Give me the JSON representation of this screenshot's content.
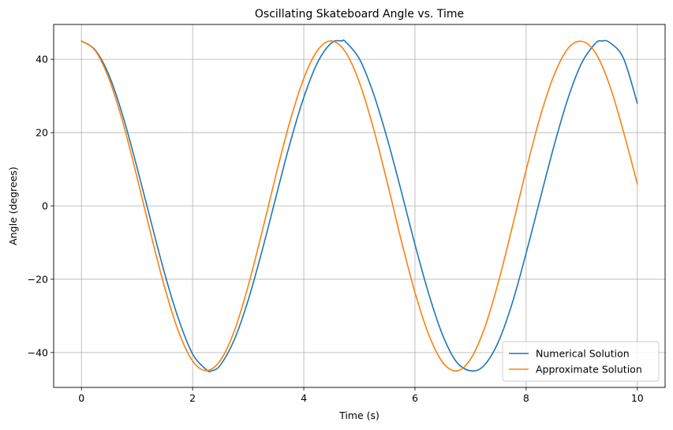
{
  "chart_data": {
    "type": "line",
    "title": "Oscillating Skateboard Angle vs. Time",
    "xlabel": "Time (s)",
    "ylabel": "Angle (degrees)",
    "xlim": [
      -0.5,
      10.5
    ],
    "ylim": [
      -49.5,
      49.5
    ],
    "xticks": [
      0,
      2,
      4,
      6,
      8,
      10
    ],
    "xtick_labels": [
      "0",
      "2",
      "4",
      "6",
      "8",
      "10"
    ],
    "yticks": [
      -40,
      -20,
      0,
      20,
      40
    ],
    "ytick_labels": [
      "−40",
      "−20",
      "0",
      "20",
      "40"
    ],
    "grid": true,
    "legend_position": "lower-right",
    "series": [
      {
        "name": "Numerical Solution",
        "color": "#1f77b4",
        "x": [
          0,
          0.25,
          0.5,
          0.75,
          1,
          1.25,
          1.5,
          1.75,
          2,
          2.25,
          2.34,
          2.5,
          2.75,
          3,
          3.25,
          3.5,
          3.75,
          4,
          4.25,
          4.5,
          4.68,
          4.75,
          5,
          5.25,
          5.5,
          5.75,
          6,
          6.25,
          6.5,
          6.75,
          7.02,
          7.25,
          7.5,
          7.75,
          8,
          8.25,
          8.5,
          8.75,
          9,
          9.25,
          9.36,
          9.5,
          9.75,
          10
        ],
        "y": [
          45,
          42.5,
          35.5,
          24.3,
          10.5,
          -4.2,
          -18.6,
          -31,
          -40.4,
          -44.7,
          -45,
          -43.4,
          -36.5,
          -25.7,
          -12.2,
          2.5,
          17,
          29.6,
          39.2,
          44.5,
          45,
          44.8,
          40.1,
          30.8,
          18.4,
          4.2,
          -10.5,
          -24.1,
          -35.3,
          -42.6,
          -45,
          -43.4,
          -37.1,
          -26.5,
          -12.9,
          1.8,
          16.3,
          29.2,
          39,
          44.4,
          45,
          44.6,
          40.3,
          28
        ]
      },
      {
        "name": "Approximate Solution",
        "color": "#ff7f0e",
        "x": [
          0,
          0.25,
          0.5,
          0.75,
          1,
          1.25,
          1.5,
          1.75,
          2,
          2.25,
          2.5,
          2.75,
          3,
          3.25,
          3.5,
          3.75,
          4,
          4.25,
          4.5,
          4.75,
          5,
          5.25,
          5.5,
          5.75,
          6,
          6.25,
          6.5,
          6.75,
          7,
          7.25,
          7.5,
          7.75,
          8,
          8.25,
          8.5,
          8.75,
          9,
          9.25,
          9.5,
          9.75,
          10
        ],
        "y": [
          45,
          42.3,
          34.5,
          22.5,
          7.8,
          -7.8,
          -22.4,
          -34.4,
          -42.3,
          -44.9,
          -42.1,
          -34.1,
          -21.8,
          -7,
          8.5,
          23,
          34.8,
          42.5,
          45,
          42,
          33.7,
          21.3,
          6.5,
          -9.2,
          -23.6,
          -35.2,
          -42.7,
          -45,
          -41.8,
          -33.4,
          -20.8,
          -5.8,
          9.8,
          24.2,
          35.6,
          42.9,
          44.9,
          41.7,
          33,
          20.3,
          6
        ]
      }
    ]
  }
}
